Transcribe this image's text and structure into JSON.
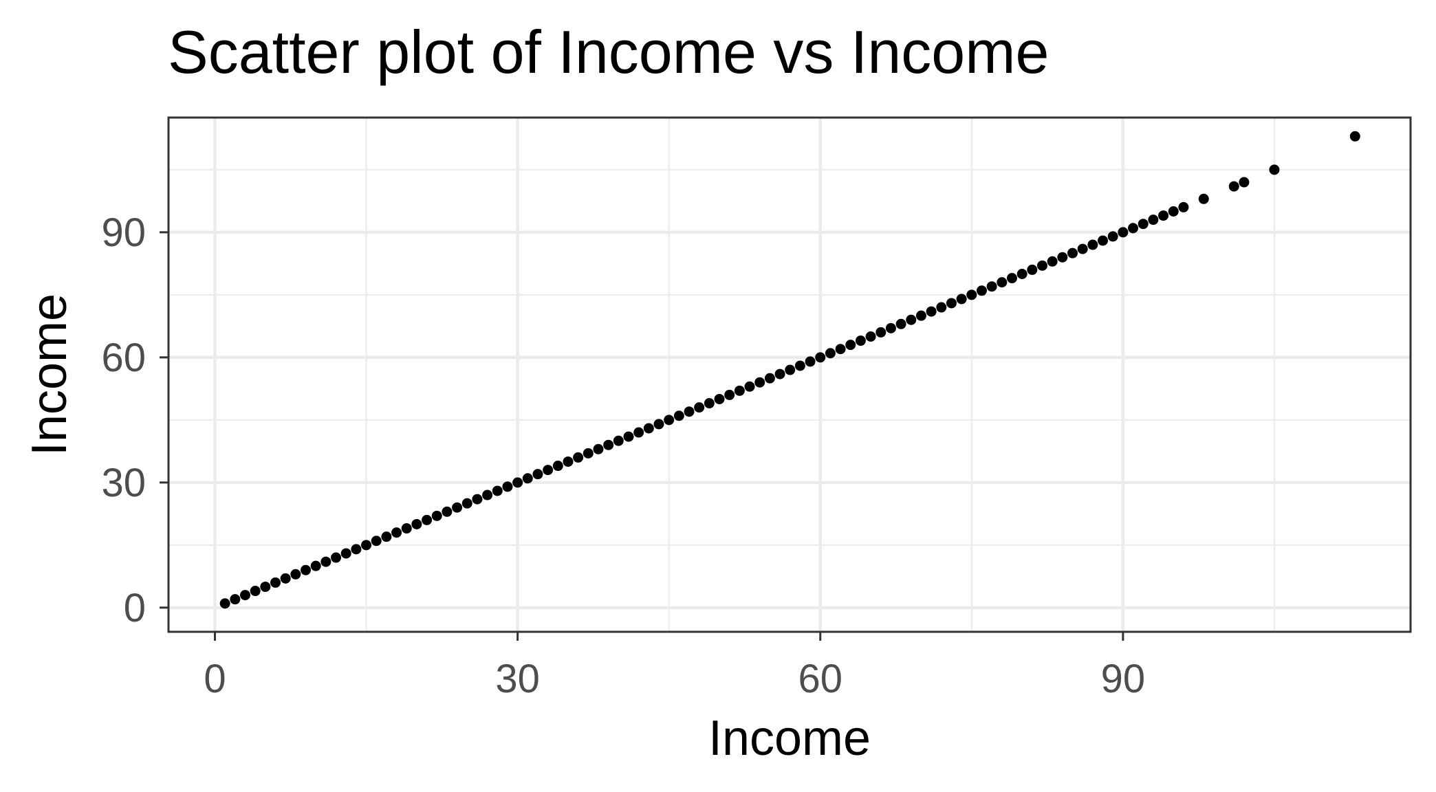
{
  "chart_data": {
    "type": "scatter",
    "title": "Scatter plot of Income vs Income",
    "xlabel": "Income",
    "ylabel": "Income",
    "xlim": [
      -4.6,
      118.5
    ],
    "ylim": [
      -5.8,
      117.5
    ],
    "x_ticks": [
      0,
      30,
      60,
      90
    ],
    "y_ticks": [
      0,
      30,
      60,
      90
    ],
    "x_tick_labels": [
      "0",
      "30",
      "60",
      "90"
    ],
    "y_tick_labels": [
      "0",
      "30",
      "60",
      "90"
    ],
    "x_minor_ticks": [
      15,
      45,
      75,
      105
    ],
    "y_minor_ticks": [
      15,
      45,
      75,
      105
    ],
    "grid": true,
    "legend": "none",
    "point_color": "#000000",
    "points": [
      [
        1,
        1
      ],
      [
        2,
        2
      ],
      [
        3,
        3
      ],
      [
        4,
        4
      ],
      [
        5,
        5
      ],
      [
        6,
        6
      ],
      [
        7,
        7
      ],
      [
        8,
        8
      ],
      [
        9,
        9
      ],
      [
        10,
        10
      ],
      [
        11,
        11
      ],
      [
        12,
        12
      ],
      [
        13,
        13
      ],
      [
        14,
        14
      ],
      [
        15,
        15
      ],
      [
        16,
        16
      ],
      [
        17,
        17
      ],
      [
        18,
        18
      ],
      [
        19,
        19
      ],
      [
        20,
        20
      ],
      [
        21,
        21
      ],
      [
        22,
        22
      ],
      [
        23,
        23
      ],
      [
        24,
        24
      ],
      [
        25,
        25
      ],
      [
        26,
        26
      ],
      [
        27,
        27
      ],
      [
        28,
        28
      ],
      [
        29,
        29
      ],
      [
        30,
        30
      ],
      [
        31,
        31
      ],
      [
        32,
        32
      ],
      [
        33,
        33
      ],
      [
        34,
        34
      ],
      [
        35,
        35
      ],
      [
        36,
        36
      ],
      [
        37,
        37
      ],
      [
        38,
        38
      ],
      [
        39,
        39
      ],
      [
        40,
        40
      ],
      [
        41,
        41
      ],
      [
        42,
        42
      ],
      [
        43,
        43
      ],
      [
        44,
        44
      ],
      [
        45,
        45
      ],
      [
        46,
        46
      ],
      [
        47,
        47
      ],
      [
        48,
        48
      ],
      [
        49,
        49
      ],
      [
        50,
        50
      ],
      [
        51,
        51
      ],
      [
        52,
        52
      ],
      [
        53,
        53
      ],
      [
        54,
        54
      ],
      [
        55,
        55
      ],
      [
        56,
        56
      ],
      [
        57,
        57
      ],
      [
        58,
        58
      ],
      [
        59,
        59
      ],
      [
        60,
        60
      ],
      [
        61,
        61
      ],
      [
        62,
        62
      ],
      [
        63,
        63
      ],
      [
        64,
        64
      ],
      [
        65,
        65
      ],
      [
        66,
        66
      ],
      [
        67,
        67
      ],
      [
        68,
        68
      ],
      [
        69,
        69
      ],
      [
        70,
        70
      ],
      [
        71,
        71
      ],
      [
        72,
        72
      ],
      [
        73,
        73
      ],
      [
        74,
        74
      ],
      [
        75,
        75
      ],
      [
        76,
        76
      ],
      [
        77,
        77
      ],
      [
        78,
        78
      ],
      [
        79,
        79
      ],
      [
        80,
        80
      ],
      [
        81,
        81
      ],
      [
        82,
        82
      ],
      [
        83,
        83
      ],
      [
        84,
        84
      ],
      [
        85,
        85
      ],
      [
        86,
        86
      ],
      [
        87,
        87
      ],
      [
        88,
        88
      ],
      [
        89,
        89
      ],
      [
        90,
        90
      ],
      [
        91,
        91
      ],
      [
        92,
        92
      ],
      [
        93,
        93
      ],
      [
        94,
        94
      ],
      [
        95,
        95
      ],
      [
        96,
        96
      ],
      [
        98,
        98
      ],
      [
        101,
        101
      ],
      [
        102,
        102
      ],
      [
        105,
        105
      ],
      [
        113,
        113
      ]
    ]
  }
}
